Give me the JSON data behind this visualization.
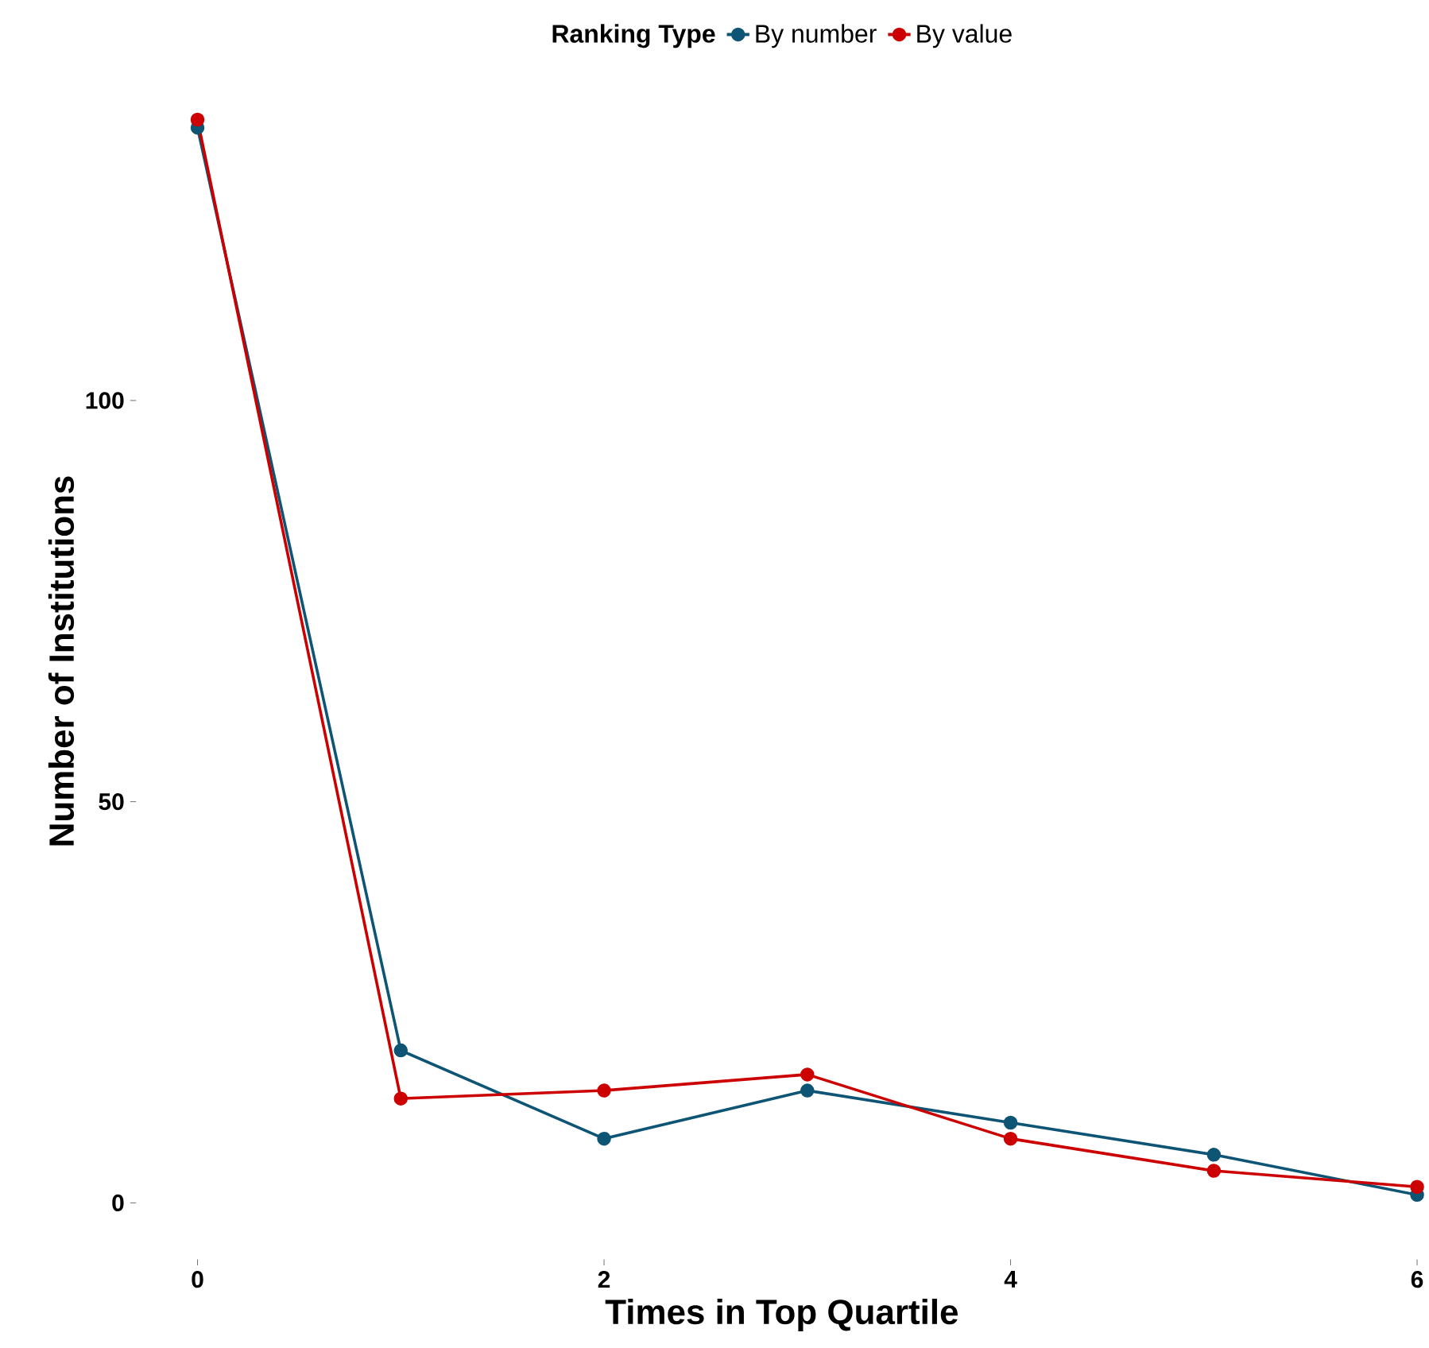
{
  "chart_data": {
    "type": "line",
    "xlabel": "Times in Top Quartile",
    "ylabel": "Number of Institutions",
    "legend_title": "Ranking Type",
    "legend": "top",
    "marker": "circle",
    "line_style": "solid",
    "grid": false,
    "x": [
      0,
      1,
      2,
      3,
      4,
      5,
      6
    ],
    "series": [
      {
        "name": "By number",
        "color": "#0e5474",
        "values": [
          134,
          19,
          8,
          14,
          10,
          6,
          1
        ]
      },
      {
        "name": "By value",
        "color": "#cc0000",
        "values": [
          135,
          13,
          14,
          16,
          8,
          4,
          2
        ]
      }
    ],
    "xlim": [
      -0.3,
      6.05
    ],
    "ylim": [
      -7,
      142
    ],
    "xticks": [
      0,
      2,
      4,
      6
    ],
    "yticks": [
      0,
      50,
      100
    ]
  }
}
